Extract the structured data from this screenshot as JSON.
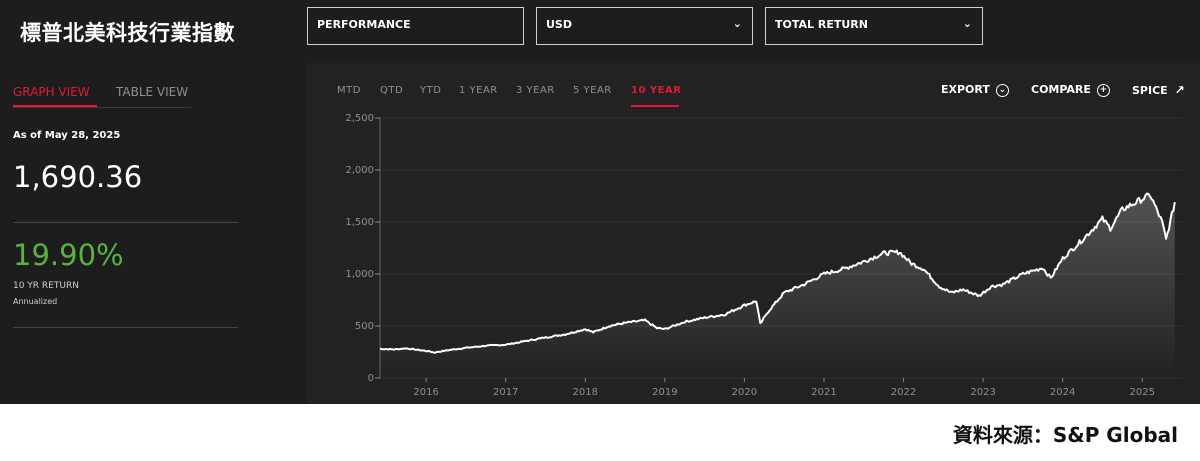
{
  "header": {
    "title": "標普北美科技行業指數",
    "dropdowns": [
      {
        "label": "PERFORMANCE"
      },
      {
        "label": "USD"
      },
      {
        "label": "TOTAL RETURN"
      }
    ]
  },
  "left": {
    "tabs": [
      "GRAPH VIEW",
      "TABLE VIEW"
    ],
    "as_of": "As of May 28, 2025",
    "index_value": "1,690.36",
    "return_value": "19.90%",
    "return_label": "10 YR RETURN",
    "return_sublabel": "Annualized"
  },
  "toolbar": {
    "periods": [
      "MTD",
      "QTD",
      "YTD",
      "1 YEAR",
      "3 YEAR",
      "5 YEAR",
      "10 YEAR"
    ],
    "active_period": "10 YEAR",
    "export_label": "EXPORT",
    "compare_label": "COMPARE",
    "spice_label": "SPICE"
  },
  "source": "資料來源：S&P Global",
  "colors": {
    "accent": "#e31837",
    "positive": "#57b33e",
    "line": "#ffffff"
  },
  "chart_data": {
    "type": "line",
    "title": "",
    "xlabel": "",
    "ylabel": "",
    "ylim": [
      0,
      2500
    ],
    "yticks": [
      "0",
      "500",
      "1,000",
      "1,500",
      "2,000",
      "2,500"
    ],
    "xticks": [
      "2016",
      "2017",
      "2018",
      "2019",
      "2020",
      "2021",
      "2022",
      "2023",
      "2024",
      "2025"
    ],
    "grid": true,
    "series": [
      {
        "x": [
          2015.42,
          2015.6,
          2015.75,
          2015.9,
          2016.05,
          2016.1,
          2016.3,
          2016.5,
          2016.75,
          2017.0,
          2017.25,
          2017.5,
          2017.75,
          2018.0,
          2018.1,
          2018.3,
          2018.5,
          2018.75,
          2018.9,
          2019.0,
          2019.25,
          2019.5,
          2019.75,
          2020.0,
          2020.15,
          2020.2,
          2020.3,
          2020.5,
          2020.75,
          2021.0,
          2021.25,
          2021.5,
          2021.75,
          2021.95,
          2022.1,
          2022.25,
          2022.45,
          2022.6,
          2022.75,
          2022.95,
          2023.1,
          2023.25,
          2023.5,
          2023.75,
          2023.85,
          2024.0,
          2024.25,
          2024.5,
          2024.6,
          2024.75,
          2025.0,
          2025.1,
          2025.25,
          2025.3,
          2025.41
        ],
        "values": [
          280,
          275,
          285,
          270,
          255,
          245,
          270,
          290,
          310,
          320,
          355,
          390,
          420,
          470,
          440,
          500,
          530,
          555,
          480,
          470,
          540,
          580,
          610,
          700,
          740,
          520,
          640,
          820,
          900,
          1000,
          1050,
          1120,
          1200,
          1210,
          1100,
          1050,
          880,
          820,
          850,
          790,
          880,
          900,
          1000,
          1060,
          960,
          1150,
          1330,
          1530,
          1440,
          1620,
          1720,
          1760,
          1500,
          1330,
          1690
        ]
      }
    ]
  }
}
